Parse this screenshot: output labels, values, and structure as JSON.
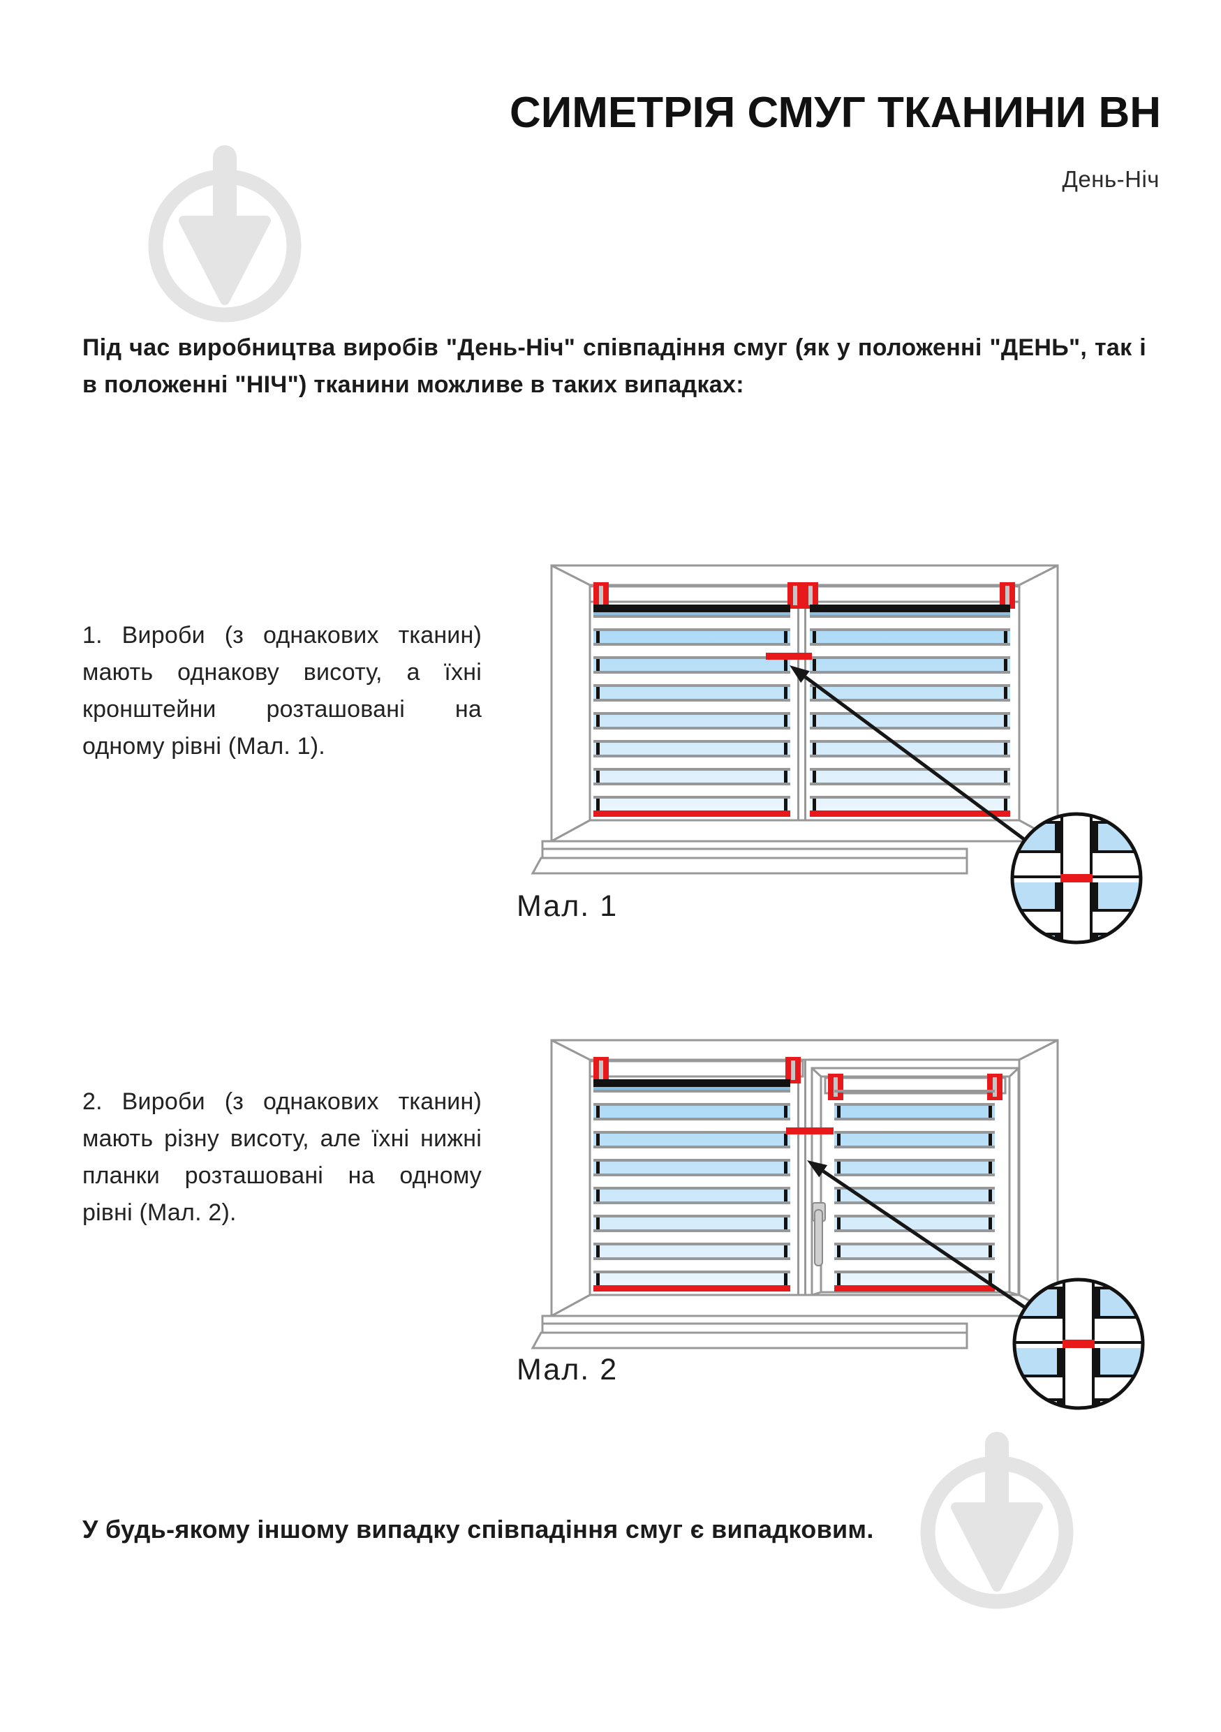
{
  "header": {
    "title": "СИМЕТРІЯ СМУГ ТКАНИНИ ВН",
    "subtitle": "День-Ніч"
  },
  "intro": "Під час виробництва виробів \"День-Ніч\" співпадіння смуг (як у положенні \"ДЕНЬ\", так і в положенні \"НІЧ\") тканини можливе в таких випадках:",
  "items": [
    {
      "text": "1. Вироби (з однакових тканин) мають однакову висоту, а їхні кронштейни розташовані на одному рівні (Мал. 1).",
      "caption": "Мал. 1"
    },
    {
      "text": "2. Вироби (з однакових тканин) мають різну висоту, але їхні нижні планки розташовані на одному рівні (Мал. 2).",
      "caption": "Мал. 2"
    }
  ],
  "footer": "У будь-якому іншому випадку співпадіння смуг є випадковим.",
  "figures": {
    "fig1": {
      "caption": "Мал. 1",
      "description": "two blinds of equal height, brackets on same level, stripes aligned",
      "left_bands": 7,
      "right_bands": 7
    },
    "fig2": {
      "caption": "Мал. 2",
      "description": "two blinds of different height, bottom bars on same level, stripes aligned",
      "left_bands": 7,
      "right_bands": 7
    }
  },
  "colors": {
    "red": "#e8191b",
    "frame_gray": "#989898",
    "black": "#121212",
    "blind_blue_top": "#a8d8f6",
    "blind_blue_bottom": "#edf6fd",
    "top_band_blue": "#8cc0de",
    "magnifier_blue": "#b9def6",
    "bracket_slot_gray": "#c6c6c6",
    "handle_gray": "#cfcfcf",
    "watermark_gray": "#e4e4e4",
    "text_black": "#1b1b1b"
  },
  "watermark_icon": "trowel-in-circle"
}
